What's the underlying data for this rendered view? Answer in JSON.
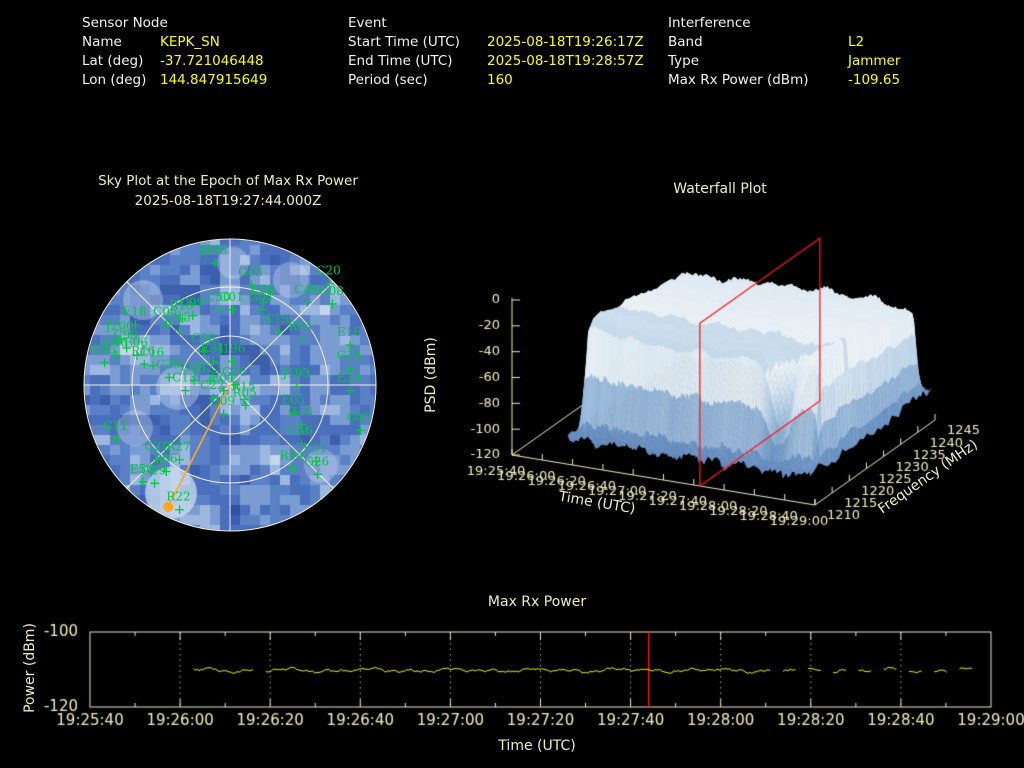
{
  "header": {
    "groups": [
      {
        "title": "Sensor Node",
        "rows": [
          {
            "label": "Name",
            "value": "KEPK_SN"
          },
          {
            "label": "Lat (deg)",
            "value": "-37.721046448"
          },
          {
            "label": "Lon (deg)",
            "value": "144.847915649"
          }
        ]
      },
      {
        "title": "Event",
        "rows": [
          {
            "label": "Start Time (UTC)",
            "value": "2025-08-18T19:26:17Z"
          },
          {
            "label": "End Time (UTC)",
            "value": "2025-08-18T19:28:57Z"
          },
          {
            "label": "Period (sec)",
            "value": "160"
          }
        ]
      },
      {
        "title": "Interference",
        "rows": [
          {
            "label": "Band",
            "value": "L2"
          },
          {
            "label": "Type",
            "value": "Jammer"
          },
          {
            "label": "Max Rx Power (dBm)",
            "value": "-109.65"
          }
        ]
      }
    ]
  },
  "colors": {
    "value_yellow": "#ffff00",
    "label_white": "#f2f2f2",
    "tick_yellow": "#f0eebe",
    "sat_green": "#00c83e",
    "epoch_orange": "#ffa520",
    "marker_red": "#ff1616",
    "grid_white": "#f2efe0",
    "frame_yellow": "#e9e9c9",
    "data_yellow": "#ffff00",
    "sky_blues": [
      "#34539f",
      "#3c5fae",
      "#4a6fbc",
      "#5a80c6",
      "#7b9cd3",
      "#9db8e0",
      "#c3d4ec"
    ],
    "surface_stops": [
      "#4f74aa",
      "#6e95c6",
      "#a7c4e0",
      "#d9e7f2",
      "#f0f4f6",
      "#ecd9a8"
    ]
  },
  "chart_data": [
    {
      "id": "sky_plot",
      "type": "scatter",
      "projection": "polar",
      "title": "Sky Plot at the Epoch of Max Rx Power",
      "subtitle": "2025-08-18T19:27:44.000Z",
      "elevation_rings_deg": [
        0,
        30,
        60
      ],
      "azimuth_spokes_deg": 45,
      "satellites": [
        [
          "J195",
          -0.11,
          -0.92
        ],
        [
          "G03",
          0.14,
          -0.77
        ],
        [
          "C20",
          0.67,
          -0.78
        ],
        [
          "C48",
          0.52,
          -0.65
        ],
        [
          "G08",
          0.69,
          -0.64
        ],
        [
          "E36",
          0.22,
          -0.65
        ],
        [
          "G04",
          0.21,
          -0.6
        ],
        [
          "C50",
          -0.08,
          -0.6
        ],
        [
          "C01",
          0.01,
          -0.6
        ],
        [
          "R10",
          -0.33,
          -0.54
        ],
        [
          "C09",
          -0.26,
          -0.56
        ],
        [
          "E18",
          -0.65,
          -0.5
        ],
        [
          "C05",
          -0.44,
          -0.5
        ],
        [
          "C45",
          -0.35,
          -0.46
        ],
        [
          "J200",
          -0.75,
          -0.4
        ],
        [
          "C99",
          -0.71,
          -0.34
        ],
        [
          "G06",
          -0.78,
          -0.29
        ],
        [
          "E06",
          -0.64,
          -0.29
        ],
        [
          "G05",
          -0.86,
          -0.24
        ],
        [
          "R16",
          -0.59,
          -0.23
        ],
        [
          "C16",
          -0.53,
          -0.22
        ],
        [
          "C39",
          -0.42,
          -0.14
        ],
        [
          "C38",
          -0.18,
          -0.32
        ],
        [
          "E34",
          -0.12,
          -0.25
        ],
        [
          "J196",
          0.01,
          -0.25
        ],
        [
          "C08",
          -0.25,
          -0.12
        ],
        [
          "E22",
          -0.14,
          -0.12
        ],
        [
          "G36",
          0.03,
          -0.09
        ],
        [
          "C13",
          -0.31,
          -0.05
        ],
        [
          "E04",
          -0.05,
          -0.05
        ],
        [
          "C22",
          -0.12,
          0.0
        ],
        [
          "R15",
          0.09,
          0.01
        ],
        [
          "R05",
          0.1,
          0.05
        ],
        [
          "G09",
          -0.05,
          0.11
        ],
        [
          "C19",
          0.32,
          -0.45
        ],
        [
          "R04",
          0.48,
          -0.4
        ],
        [
          "E16",
          0.81,
          -0.36
        ],
        [
          "G14",
          0.81,
          -0.2
        ],
        [
          "J193",
          0.45,
          -0.08
        ],
        [
          "E24",
          0.81,
          -0.05
        ],
        [
          "E05",
          0.43,
          0.1
        ],
        [
          "G16",
          0.48,
          0.18
        ],
        [
          "G07",
          0.88,
          0.22
        ],
        [
          "C46",
          0.48,
          0.31
        ],
        [
          "E31",
          0.58,
          0.43
        ],
        [
          "R14",
          0.42,
          0.48
        ],
        [
          "G26",
          0.59,
          0.52
        ],
        [
          "G11",
          -0.78,
          0.28
        ],
        [
          "C21",
          -0.5,
          0.42
        ],
        [
          "R27",
          -0.35,
          0.42
        ],
        [
          "R06",
          -0.44,
          0.5
        ],
        [
          "E50",
          -0.6,
          0.57
        ],
        [
          "G29",
          -0.52,
          0.58
        ],
        [
          "R22",
          -0.35,
          0.76
        ]
      ],
      "epoch_marker": {
        "sat": "R22",
        "x": -0.42,
        "y": 0.83
      }
    },
    {
      "id": "waterfall",
      "type": "heatmap",
      "title": "Waterfall Plot",
      "xlabel": "Time (UTC)",
      "freq_label": "Frequency (MHz)",
      "psd_label": "PSD (dBm)",
      "x_ticks": [
        "19:25:40",
        "19:26:00",
        "19:26:20",
        "19:26:40",
        "19:27:00",
        "19:27:20",
        "19:27:40",
        "19:28:00",
        "19:28:20",
        "19:28:40",
        "19:29:00"
      ],
      "psd_ticks": [
        0,
        -20,
        -40,
        -60,
        -80,
        -100,
        -120
      ],
      "psd_range": [
        -120,
        0
      ],
      "freq_ticks": [
        1210,
        1215,
        1220,
        1225,
        1230,
        1235,
        1240,
        1245
      ],
      "freq_range_mhz": [
        1210,
        1245
      ],
      "time_span_s": [
        0,
        200
      ],
      "event_window_s": [
        37,
        197
      ],
      "plateau_psd_dbm": -25,
      "floor_psd_dbm": -98,
      "occupied_band_mhz": [
        1212,
        1243
      ],
      "epoch_plane_s": 124
    },
    {
      "id": "max_rx_power",
      "type": "line",
      "title": "Max Rx Power",
      "xlabel": "Time (UTC)",
      "ylabel": "Power (dBm)",
      "x_ticks": [
        "19:25:40",
        "19:26:00",
        "19:26:20",
        "19:26:40",
        "19:27:00",
        "19:27:20",
        "19:27:40",
        "19:28:00",
        "19:28:20",
        "19:28:40",
        "19:29:00"
      ],
      "y_ticks": [
        -100,
        -120
      ],
      "ylim": [
        -120,
        -100
      ],
      "xlim_s": [
        0,
        200
      ],
      "baseline_dbm": -110.2,
      "max_dbm": -109.65,
      "data_start_s": 23,
      "data_end_s": 199,
      "dropout_start_s": 148,
      "epoch_line_s": 124,
      "gridlines": "dotted-major"
    }
  ]
}
